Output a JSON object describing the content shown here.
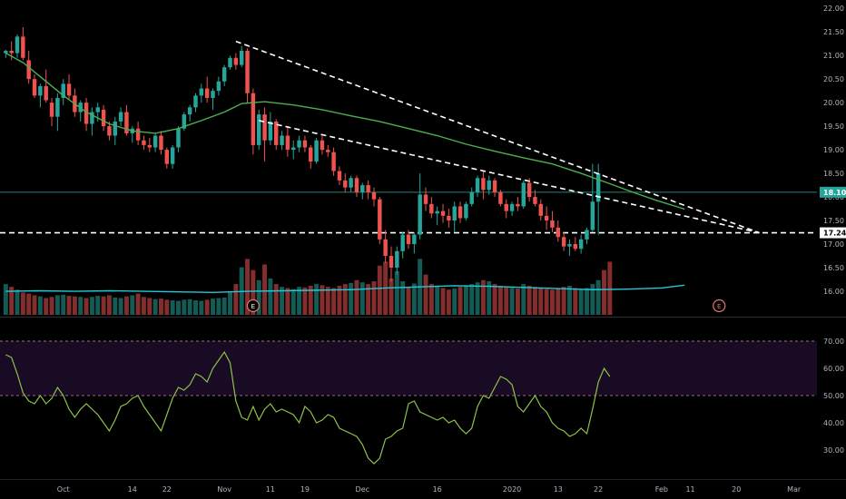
{
  "chart_data": {
    "type": "candlestick",
    "colors": {
      "background": "#000000",
      "up": "#26a69a",
      "down": "#ef5350",
      "ma": "#4caf50",
      "volume_ma": "#26c6da",
      "rsi": "#8bc34a",
      "rsi_band": "#1a0b24",
      "rsi_band_lines": "#9e6b7a",
      "trendline": "#ffffff",
      "price_line": "#26a69a",
      "event": "#e57373"
    },
    "price_axis": {
      "range": [
        15.5,
        22.1
      ],
      "ticks": [
        "22.00",
        "21.50",
        "21.00",
        "20.50",
        "20.00",
        "19.50",
        "19.00",
        "18.50",
        "18.00",
        "17.50",
        "17.00",
        "16.50",
        "16.00"
      ]
    },
    "x_ticks": [
      {
        "label": "Oct",
        "i": 10
      },
      {
        "label": "14",
        "i": 22
      },
      {
        "label": "22",
        "i": 28
      },
      {
        "label": "Nov",
        "i": 38
      },
      {
        "label": "11",
        "i": 46
      },
      {
        "label": "19",
        "i": 52
      },
      {
        "label": "Dec",
        "i": 62
      },
      {
        "label": "16",
        "i": 75
      },
      {
        "label": "2020",
        "i": 88
      },
      {
        "label": "13",
        "i": 96
      },
      {
        "label": "22",
        "i": 103
      },
      {
        "label": "Feb",
        "i": 114
      },
      {
        "label": "11",
        "i": 119
      },
      {
        "label": "20",
        "i": 127
      },
      {
        "label": "Mar",
        "i": 137
      }
    ],
    "x_index_range": [
      -1,
      141
    ],
    "ohlc": [
      [
        21.05,
        21.12,
        20.95,
        21.1
      ],
      [
        21.1,
        21.3,
        20.9,
        21.05
      ],
      [
        21.05,
        21.45,
        20.95,
        21.4
      ],
      [
        21.4,
        21.6,
        20.9,
        20.95
      ],
      [
        20.9,
        21.1,
        20.4,
        20.5
      ],
      [
        20.5,
        20.6,
        20.1,
        20.15
      ],
      [
        20.15,
        20.4,
        19.9,
        20.35
      ],
      [
        20.35,
        20.7,
        20.0,
        20.05
      ],
      [
        20.0,
        20.1,
        19.5,
        19.7
      ],
      [
        19.7,
        20.2,
        19.4,
        20.1
      ],
      [
        20.1,
        20.5,
        19.95,
        20.4
      ],
      [
        20.4,
        20.6,
        20.05,
        20.15
      ],
      [
        20.15,
        20.3,
        19.7,
        19.8
      ],
      [
        19.8,
        20.05,
        19.6,
        20.0
      ],
      [
        20.0,
        20.1,
        19.4,
        19.55
      ],
      [
        19.55,
        19.9,
        19.3,
        19.8
      ],
      [
        19.8,
        20.0,
        19.6,
        19.9
      ],
      [
        19.85,
        19.95,
        19.4,
        19.5
      ],
      [
        19.5,
        19.6,
        19.2,
        19.3
      ],
      [
        19.3,
        19.7,
        19.1,
        19.6
      ],
      [
        19.6,
        19.9,
        19.5,
        19.8
      ],
      [
        19.8,
        19.95,
        19.3,
        19.35
      ],
      [
        19.35,
        19.5,
        19.15,
        19.45
      ],
      [
        19.45,
        19.6,
        19.1,
        19.2
      ],
      [
        19.2,
        19.3,
        19.0,
        19.1
      ],
      [
        19.1,
        19.25,
        18.95,
        19.05
      ],
      [
        19.05,
        19.35,
        18.95,
        19.3
      ],
      [
        19.3,
        19.4,
        18.9,
        19.0
      ],
      [
        19.0,
        19.05,
        18.6,
        18.7
      ],
      [
        18.7,
        19.1,
        18.6,
        19.05
      ],
      [
        19.05,
        19.5,
        18.95,
        19.45
      ],
      [
        19.45,
        19.8,
        19.4,
        19.75
      ],
      [
        19.75,
        19.95,
        19.6,
        19.9
      ],
      [
        19.9,
        20.2,
        19.8,
        20.15
      ],
      [
        20.15,
        20.4,
        20.0,
        20.3
      ],
      [
        20.3,
        20.55,
        20.0,
        20.1
      ],
      [
        20.1,
        20.3,
        19.85,
        20.25
      ],
      [
        20.25,
        20.55,
        20.15,
        20.45
      ],
      [
        20.45,
        20.8,
        20.35,
        20.75
      ],
      [
        20.75,
        21.0,
        20.7,
        20.95
      ],
      [
        20.95,
        21.05,
        20.7,
        20.8
      ],
      [
        20.8,
        21.2,
        20.75,
        21.1
      ],
      [
        21.1,
        21.15,
        20.0,
        20.2
      ],
      [
        20.2,
        20.3,
        18.9,
        19.1
      ],
      [
        19.1,
        19.85,
        19.0,
        19.75
      ],
      [
        19.75,
        19.9,
        18.75,
        19.2
      ],
      [
        19.2,
        19.8,
        19.1,
        19.6
      ],
      [
        19.6,
        19.65,
        19.0,
        19.1
      ],
      [
        19.1,
        19.4,
        19.0,
        19.3
      ],
      [
        19.3,
        19.5,
        18.85,
        19.0
      ],
      [
        19.0,
        19.2,
        18.8,
        19.05
      ],
      [
        19.05,
        19.3,
        18.95,
        19.2
      ],
      [
        19.2,
        19.3,
        18.95,
        19.05
      ],
      [
        19.05,
        19.1,
        18.6,
        18.75
      ],
      [
        18.75,
        19.25,
        18.7,
        19.2
      ],
      [
        19.2,
        19.3,
        18.9,
        19.0
      ],
      [
        19.0,
        19.1,
        18.85,
        18.95
      ],
      [
        18.95,
        19.05,
        18.45,
        18.55
      ],
      [
        18.55,
        18.65,
        18.25,
        18.35
      ],
      [
        18.35,
        18.5,
        18.1,
        18.2
      ],
      [
        18.2,
        18.45,
        18.1,
        18.4
      ],
      [
        18.4,
        18.45,
        18.0,
        18.1
      ],
      [
        18.1,
        18.3,
        17.95,
        18.25
      ],
      [
        18.25,
        18.35,
        17.95,
        18.1
      ],
      [
        18.1,
        18.2,
        17.8,
        17.95
      ],
      [
        17.95,
        18.0,
        17.0,
        17.1
      ],
      [
        17.1,
        17.3,
        16.6,
        16.75
      ],
      [
        16.75,
        16.95,
        16.2,
        16.5
      ],
      [
        16.5,
        16.95,
        16.35,
        16.85
      ],
      [
        16.85,
        17.25,
        16.7,
        17.2
      ],
      [
        17.2,
        17.3,
        16.9,
        17.0
      ],
      [
        17.0,
        17.25,
        16.8,
        17.2
      ],
      [
        17.2,
        18.5,
        17.1,
        18.05
      ],
      [
        18.05,
        18.2,
        17.7,
        17.85
      ],
      [
        17.85,
        18.0,
        17.55,
        17.65
      ],
      [
        17.65,
        17.8,
        17.4,
        17.7
      ],
      [
        17.7,
        17.85,
        17.45,
        17.6
      ],
      [
        17.6,
        17.75,
        17.35,
        17.5
      ],
      [
        17.5,
        17.9,
        17.25,
        17.8
      ],
      [
        17.8,
        17.9,
        17.45,
        17.55
      ],
      [
        17.55,
        17.9,
        17.5,
        17.85
      ],
      [
        17.85,
        18.2,
        17.8,
        18.1
      ],
      [
        18.1,
        18.45,
        18.0,
        18.4
      ],
      [
        18.4,
        18.55,
        17.95,
        18.15
      ],
      [
        18.15,
        18.45,
        18.05,
        18.35
      ],
      [
        18.35,
        18.4,
        18.0,
        18.1
      ],
      [
        18.1,
        18.15,
        17.8,
        17.85
      ],
      [
        17.85,
        17.95,
        17.55,
        17.7
      ],
      [
        17.7,
        17.9,
        17.6,
        17.85
      ],
      [
        17.85,
        18.0,
        17.7,
        17.8
      ],
      [
        17.8,
        18.35,
        17.75,
        18.3
      ],
      [
        18.3,
        18.4,
        17.9,
        18.0
      ],
      [
        18.0,
        18.15,
        17.8,
        17.85
      ],
      [
        17.85,
        17.95,
        17.5,
        17.6
      ],
      [
        17.6,
        17.8,
        17.3,
        17.5
      ],
      [
        17.5,
        17.7,
        17.25,
        17.35
      ],
      [
        17.35,
        17.5,
        17.05,
        17.15
      ],
      [
        17.15,
        17.25,
        16.85,
        16.95
      ],
      [
        16.95,
        17.1,
        16.75,
        17.0
      ],
      [
        17.0,
        17.15,
        16.85,
        16.9
      ],
      [
        16.9,
        17.2,
        16.8,
        17.1
      ],
      [
        17.1,
        17.35,
        17.0,
        17.3
      ],
      [
        17.3,
        18.7,
        17.25,
        17.9
      ],
      [
        17.9,
        18.7,
        17.2,
        18.5
      ]
    ],
    "ma50": [
      [
        0,
        21.05
      ],
      [
        3,
        20.85
      ],
      [
        6,
        20.55
      ],
      [
        10,
        20.15
      ],
      [
        14,
        19.8
      ],
      [
        18,
        19.55
      ],
      [
        22,
        19.4
      ],
      [
        26,
        19.35
      ],
      [
        30,
        19.45
      ],
      [
        34,
        19.62
      ],
      [
        38,
        19.8
      ],
      [
        41,
        19.98
      ],
      [
        45,
        20.02
      ],
      [
        50,
        19.95
      ],
      [
        55,
        19.85
      ],
      [
        60,
        19.72
      ],
      [
        65,
        19.6
      ],
      [
        70,
        19.45
      ],
      [
        75,
        19.3
      ],
      [
        80,
        19.12
      ],
      [
        85,
        18.97
      ],
      [
        90,
        18.83
      ],
      [
        95,
        18.7
      ],
      [
        100,
        18.5
      ],
      [
        105,
        18.28
      ],
      [
        109,
        18.1
      ],
      [
        113,
        17.93
      ],
      [
        117,
        17.78
      ],
      [
        118,
        17.74
      ]
    ],
    "volume_ma": [
      [
        0,
        0.42
      ],
      [
        6,
        0.43
      ],
      [
        12,
        0.42
      ],
      [
        18,
        0.43
      ],
      [
        24,
        0.42
      ],
      [
        30,
        0.41
      ],
      [
        36,
        0.4
      ],
      [
        42,
        0.42
      ],
      [
        48,
        0.43
      ],
      [
        54,
        0.44
      ],
      [
        60,
        0.45
      ],
      [
        66,
        0.48
      ],
      [
        72,
        0.5
      ],
      [
        78,
        0.52
      ],
      [
        84,
        0.51
      ],
      [
        90,
        0.49
      ],
      [
        96,
        0.47
      ],
      [
        102,
        0.45
      ],
      [
        108,
        0.46
      ],
      [
        114,
        0.48
      ],
      [
        118,
        0.53
      ]
    ],
    "volume": [
      0.55,
      0.5,
      0.45,
      0.4,
      0.38,
      0.35,
      0.33,
      0.3,
      0.32,
      0.35,
      0.36,
      0.34,
      0.33,
      0.32,
      0.3,
      0.32,
      0.34,
      0.33,
      0.35,
      0.31,
      0.3,
      0.33,
      0.35,
      0.38,
      0.32,
      0.3,
      0.28,
      0.29,
      0.27,
      0.26,
      0.25,
      0.27,
      0.28,
      0.26,
      0.25,
      0.27,
      0.29,
      0.3,
      0.31,
      0.4,
      0.55,
      0.85,
      1.0,
      0.8,
      0.62,
      0.9,
      0.65,
      0.55,
      0.5,
      0.48,
      0.46,
      0.5,
      0.49,
      0.52,
      0.55,
      0.53,
      0.5,
      0.48,
      0.52,
      0.55,
      0.57,
      0.62,
      0.58,
      0.55,
      0.6,
      0.88,
      0.95,
      0.65,
      0.78,
      0.6,
      0.5,
      0.56,
      1.0,
      0.72,
      0.55,
      0.52,
      0.48,
      0.45,
      0.47,
      0.5,
      0.53,
      0.55,
      0.58,
      0.62,
      0.6,
      0.55,
      0.52,
      0.5,
      0.48,
      0.47,
      0.55,
      0.52,
      0.5,
      0.48,
      0.46,
      0.45,
      0.47,
      0.5,
      0.52,
      0.48,
      0.46,
      0.48,
      0.55,
      0.62,
      0.8,
      0.95
    ],
    "rsi_axis": {
      "range": [
        22,
        78
      ],
      "ticks": [
        "70.00",
        "60.00",
        "50.00",
        "40.00",
        "30.00"
      ],
      "band": [
        50,
        70
      ]
    },
    "rsi": [
      65,
      64,
      58,
      51,
      48,
      47,
      50,
      47,
      49,
      53,
      50,
      45,
      42,
      45,
      47,
      45,
      43,
      40,
      37,
      41,
      46,
      47,
      49,
      50,
      46,
      43,
      40,
      37,
      43,
      49,
      53,
      52,
      54,
      58,
      57,
      55,
      60,
      63,
      66,
      62,
      48,
      42,
      41,
      46,
      41,
      45,
      47,
      44,
      45,
      44,
      43,
      40,
      46,
      44,
      40,
      41,
      43,
      42,
      38,
      37,
      36,
      35,
      32,
      27,
      25,
      27,
      34,
      35,
      37,
      38,
      47,
      48,
      44,
      43,
      42,
      41,
      42,
      40,
      41,
      38,
      36,
      38,
      46,
      50,
      49,
      53,
      57,
      56,
      54,
      46,
      44,
      47,
      50,
      46,
      44,
      40,
      38,
      37,
      35,
      36,
      38,
      36,
      45,
      55,
      60,
      57
    ],
    "trendlines": [
      {
        "from": [
          40,
          21.3
        ],
        "to": [
          131,
          17.24
        ]
      },
      {
        "from": [
          44,
          19.62
        ],
        "to": [
          131,
          17.24
        ]
      }
    ],
    "support_level": 17.24,
    "current_price": 18.1,
    "labels": {
      "current_price": "18.10",
      "support": "17.24",
      "event": "E"
    },
    "events": [
      {
        "i": 43,
        "label": "E"
      },
      {
        "i": 124,
        "label": "E"
      }
    ]
  }
}
